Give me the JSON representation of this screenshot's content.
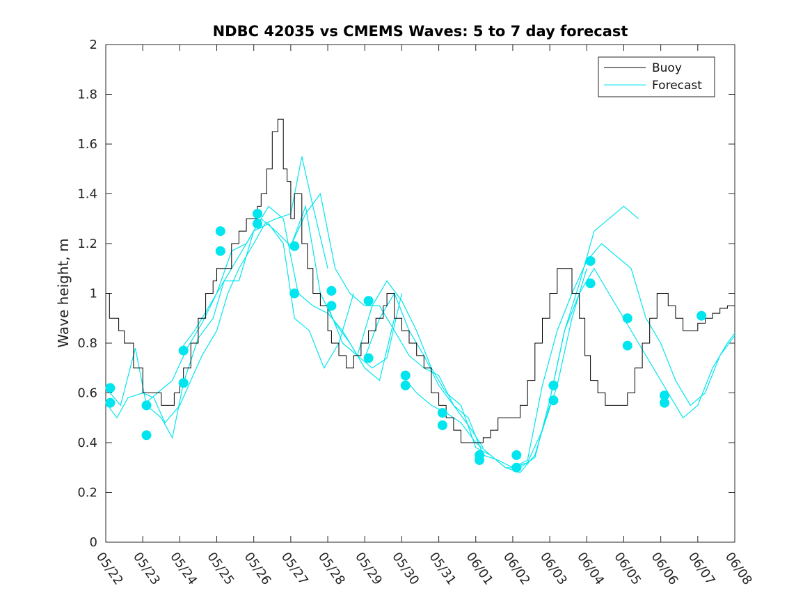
{
  "chart_data": {
    "type": "line",
    "title": "NDBC 42035 vs CMEMS Waves: 5 to 7 day forecast",
    "xlabel": "",
    "ylabel": "Wave height, m",
    "x_range": [
      "05/22",
      "06/08"
    ],
    "x_ticks": [
      "05/22",
      "05/23",
      "05/24",
      "05/25",
      "05/26",
      "05/27",
      "05/28",
      "05/29",
      "05/30",
      "05/31",
      "06/01",
      "06/02",
      "06/03",
      "06/04",
      "06/05",
      "06/06",
      "06/07",
      "06/08"
    ],
    "ylim": [
      0,
      2
    ],
    "y_ticks": [
      0,
      0.2,
      0.4,
      0.6,
      0.8,
      1,
      1.2,
      1.4,
      1.6,
      1.8,
      2
    ],
    "y_tick_labels": [
      "0",
      "0.2",
      "0.4",
      "0.6",
      "0.8",
      "1",
      "1.2",
      "1.4",
      "1.6",
      "1.8",
      "2"
    ],
    "grid": false,
    "legend": {
      "position": "top-right",
      "entries": [
        {
          "label": "Buoy",
          "color": "#000000"
        },
        {
          "label": "Forecast",
          "color": "#00e5ee"
        }
      ]
    },
    "series": [
      {
        "name": "Buoy",
        "color": "#000000",
        "day": [
          0,
          0.1,
          0.2,
          0.35,
          0.5,
          0.6,
          0.75,
          0.9,
          1.0,
          1.1,
          1.3,
          1.5,
          1.7,
          1.85,
          2.0,
          2.1,
          2.3,
          2.5,
          2.7,
          2.9,
          3.0,
          3.2,
          3.4,
          3.6,
          3.8,
          3.95,
          4.1,
          4.2,
          4.35,
          4.5,
          4.65,
          4.8,
          4.9,
          5.0,
          5.1,
          5.3,
          5.45,
          5.6,
          5.8,
          6.0,
          6.1,
          6.3,
          6.5,
          6.7,
          6.9,
          7.1,
          7.3,
          7.5,
          7.6,
          7.8,
          8.0,
          8.2,
          8.4,
          8.6,
          8.8,
          9.0,
          9.2,
          9.4,
          9.6,
          9.8,
          10.0,
          10.2,
          10.4,
          10.6,
          10.8,
          11.0,
          11.2,
          11.4,
          11.6,
          11.8,
          12.0,
          12.2,
          12.4,
          12.6,
          12.8,
          12.95,
          13.1,
          13.3,
          13.5,
          13.7,
          13.9,
          14.1,
          14.3,
          14.5,
          14.7,
          14.9,
          15.0,
          15.2,
          15.4,
          15.6,
          15.8,
          16.0,
          16.2,
          16.4,
          16.6,
          16.8,
          17.0
        ],
        "value": [
          1.0,
          0.9,
          0.9,
          0.85,
          0.8,
          0.8,
          0.7,
          0.7,
          0.6,
          0.6,
          0.6,
          0.55,
          0.55,
          0.6,
          0.65,
          0.7,
          0.8,
          0.9,
          1.0,
          1.05,
          1.1,
          1.1,
          1.2,
          1.25,
          1.3,
          1.3,
          1.35,
          1.4,
          1.5,
          1.65,
          1.7,
          1.5,
          1.45,
          1.3,
          1.4,
          1.2,
          1.1,
          1.0,
          0.95,
          0.85,
          0.8,
          0.75,
          0.7,
          0.75,
          0.8,
          0.85,
          0.9,
          0.95,
          1.0,
          0.9,
          0.85,
          0.8,
          0.75,
          0.7,
          0.6,
          0.55,
          0.5,
          0.45,
          0.4,
          0.4,
          0.4,
          0.42,
          0.45,
          0.5,
          0.5,
          0.5,
          0.55,
          0.65,
          0.8,
          0.9,
          1.0,
          1.1,
          1.1,
          1.0,
          0.9,
          0.75,
          0.65,
          0.6,
          0.55,
          0.55,
          0.55,
          0.6,
          0.7,
          0.8,
          0.9,
          1.0,
          1.0,
          0.95,
          0.9,
          0.85,
          0.85,
          0.88,
          0.9,
          0.92,
          0.94,
          0.95,
          0.95
        ]
      },
      {
        "name": "Forecast",
        "color": "#00e5ee",
        "runs": [
          {
            "day": [
              0,
              0.3,
              0.6,
              1.0,
              1.3,
              1.6,
              2.0,
              2.3,
              2.6,
              3.0,
              3.3,
              3.6,
              4.0,
              4.3,
              4.6,
              5.0,
              5.3,
              5.6,
              6.0
            ],
            "value": [
              0.56,
              0.5,
              0.58,
              0.6,
              0.58,
              0.48,
              0.55,
              0.65,
              0.75,
              0.85,
              1.0,
              1.1,
              1.2,
              1.28,
              1.3,
              1.32,
              1.55,
              1.35,
              1.1
            ]
          },
          {
            "day": [
              0,
              0.4,
              0.8,
              1.1,
              1.5,
              1.8,
              2.1,
              2.5,
              2.9,
              3.2,
              3.6,
              4.0,
              4.4,
              4.8,
              5.1,
              5.5,
              5.9,
              6.3,
              6.7
            ],
            "value": [
              0.62,
              0.55,
              0.78,
              0.55,
              0.5,
              0.42,
              0.64,
              0.82,
              0.9,
              1.05,
              1.05,
              1.25,
              1.28,
              1.2,
              0.9,
              0.85,
              0.7,
              0.8,
              1.0
            ]
          },
          {
            "day": [
              1.0,
              1.4,
              1.8,
              2.2,
              2.6,
              3.0,
              3.4,
              3.8,
              4.2,
              4.6,
              5.0,
              5.4,
              5.8,
              6.2,
              6.6,
              7.0,
              7.4,
              7.8
            ],
            "value": [
              0.55,
              0.6,
              0.65,
              0.78,
              0.88,
              1.0,
              1.17,
              1.2,
              1.3,
              1.25,
              1.19,
              1.35,
              1.0,
              0.88,
              0.8,
              0.7,
              0.65,
              0.9
            ]
          },
          {
            "day": [
              2.0,
              2.4,
              2.8,
              3.2,
              3.6,
              4.0,
              4.4,
              4.8,
              5.2,
              5.6,
              6.0,
              6.4,
              6.8,
              7.2,
              7.6,
              8.0
            ],
            "value": [
              0.77,
              0.85,
              0.95,
              1.05,
              1.15,
              1.25,
              1.35,
              1.3,
              1.0,
              0.95,
              0.92,
              0.85,
              0.75,
              0.7,
              0.74,
              1.0
            ]
          },
          {
            "day": [
              5.0,
              5.4,
              5.8,
              6.2,
              6.6,
              7.0,
              7.4,
              7.8,
              8.2,
              8.6,
              9.0,
              9.4,
              9.8,
              10.2
            ],
            "value": [
              1.19,
              1.32,
              1.4,
              1.1,
              1.0,
              0.95,
              0.95,
              0.85,
              0.75,
              0.7,
              0.67,
              0.55,
              0.47,
              0.38
            ]
          },
          {
            "day": [
              6.0,
              6.4,
              6.8,
              7.2,
              7.6,
              8.0,
              8.4,
              8.8,
              9.2,
              9.6,
              10.0,
              10.4,
              10.8,
              11.2,
              11.6,
              12.0
            ],
            "value": [
              0.95,
              0.8,
              0.75,
              0.95,
              1.05,
              0.97,
              0.85,
              0.7,
              0.6,
              0.55,
              0.38,
              0.35,
              0.3,
              0.28,
              0.35,
              0.55
            ]
          },
          {
            "day": [
              7.0,
              7.4,
              7.8,
              8.2,
              8.6,
              9.0,
              9.4,
              9.8,
              10.2,
              10.6,
              11.0,
              11.4,
              11.8,
              12.2,
              12.6,
              13.0
            ],
            "value": [
              0.74,
              0.9,
              1.0,
              0.85,
              0.75,
              0.63,
              0.55,
              0.5,
              0.35,
              0.33,
              0.3,
              0.32,
              0.45,
              0.63,
              0.9,
              1.1
            ]
          },
          {
            "day": [
              8.0,
              8.4,
              8.8,
              9.2,
              9.6,
              10.0,
              10.4,
              10.8,
              11.2,
              11.6,
              12.0,
              12.4,
              12.8,
              13.2,
              13.6,
              14.0,
              14.4
            ],
            "value": [
              0.67,
              0.6,
              0.55,
              0.52,
              0.48,
              0.4,
              0.35,
              0.3,
              0.3,
              0.34,
              0.57,
              0.85,
              1.04,
              1.25,
              1.3,
              1.35,
              1.3
            ]
          },
          {
            "day": [
              11.0,
              11.4,
              11.8,
              12.2,
              12.6,
              13.0,
              13.4,
              13.8,
              14.2,
              14.6,
              15.0,
              15.4,
              15.8,
              16.2,
              16.6,
              17.0
            ],
            "value": [
              0.3,
              0.33,
              0.63,
              0.85,
              1.0,
              1.13,
              1.2,
              1.15,
              1.1,
              0.9,
              0.8,
              0.65,
              0.55,
              0.6,
              0.75,
              0.83
            ]
          },
          {
            "day": [
              12.0,
              12.4,
              12.8,
              13.2,
              13.6,
              14.0,
              14.4,
              14.8,
              15.2,
              15.6,
              16.0,
              16.4,
              16.8,
              17.0
            ],
            "value": [
              0.57,
              0.85,
              1.0,
              1.1,
              1.0,
              0.9,
              0.8,
              0.7,
              0.6,
              0.5,
              0.55,
              0.7,
              0.8,
              0.84
            ]
          }
        ],
        "markers": {
          "day": [
            0.12,
            0.12,
            1.1,
            1.1,
            2.1,
            2.1,
            3.1,
            3.1,
            4.1,
            4.1,
            5.1,
            5.1,
            6.1,
            6.1,
            7.1,
            7.1,
            8.1,
            8.1,
            9.1,
            9.1,
            10.1,
            10.1,
            11.1,
            11.1,
            12.1,
            12.1,
            13.1,
            13.1,
            14.1,
            14.1,
            15.1,
            15.1,
            16.1
          ],
          "value": [
            0.62,
            0.56,
            0.55,
            0.43,
            0.77,
            0.64,
            1.25,
            1.17,
            1.32,
            1.28,
            1.19,
            1.0,
            1.01,
            0.95,
            0.97,
            0.74,
            0.67,
            0.63,
            0.52,
            0.47,
            0.35,
            0.33,
            0.35,
            0.3,
            0.63,
            0.57,
            1.13,
            1.04,
            0.9,
            0.79,
            0.59,
            0.56,
            0.91
          ]
        }
      }
    ]
  }
}
